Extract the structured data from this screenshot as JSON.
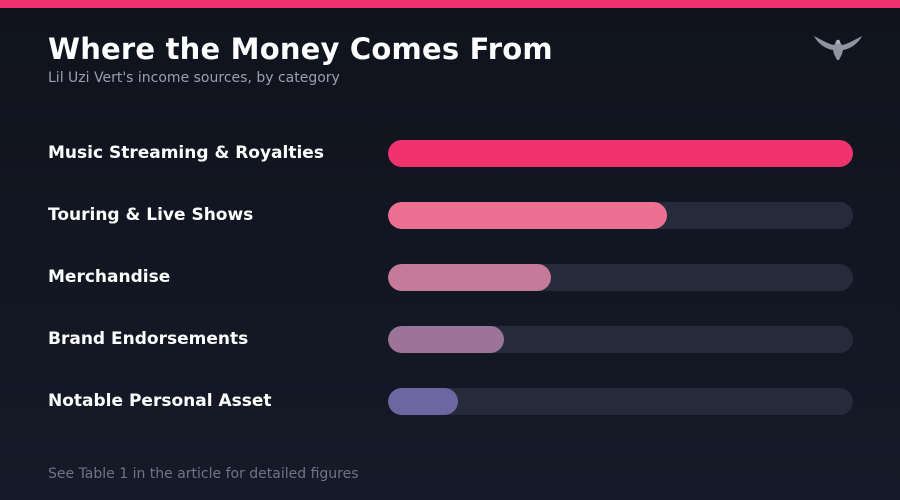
{
  "header": {
    "title": "Where the Money Comes From",
    "subtitle": "Lil Uzi Vert's income sources, by category",
    "logo_icon": "eagle-icon"
  },
  "colors": {
    "accent": "#f0336f",
    "track": "#262b3b"
  },
  "chart_data": {
    "type": "bar",
    "orientation": "horizontal",
    "categories": [
      "Music Streaming & Royalties",
      "Touring & Live Shows",
      "Merchandise",
      "Brand Endorsements",
      "Notable Personal Asset"
    ],
    "values": [
      100,
      60,
      35,
      25,
      15
    ],
    "bar_colors": [
      "#f0336f",
      "#eb7092",
      "#c47a98",
      "#9c7499",
      "#6e66a0"
    ],
    "title": "Where the Money Comes From",
    "subtitle": "Lil Uzi Vert's income sources, by category",
    "xlim": [
      0,
      100
    ],
    "grid": false,
    "legend": "none"
  },
  "footer": {
    "note": "See Table 1 in the article for detailed figures"
  }
}
